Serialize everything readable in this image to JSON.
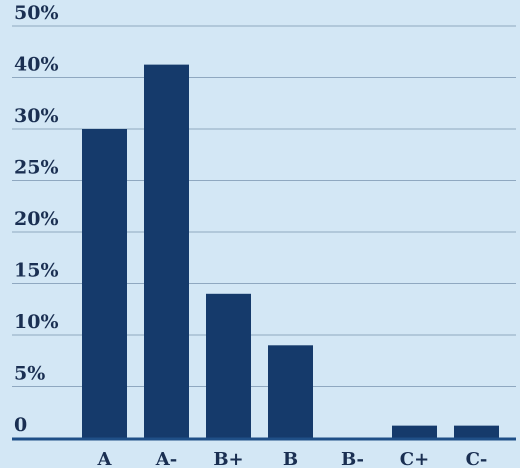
{
  "chart_data": {
    "type": "bar",
    "categories": [
      "A",
      "A-",
      "B+",
      "B",
      "B-",
      "C+",
      "C-"
    ],
    "values": [
      30,
      42.5,
      14,
      9,
      0,
      1.2,
      1.2
    ],
    "y_tick_labels": [
      "0",
      "5%",
      "10%",
      "15%",
      "20%",
      "25%",
      "30%",
      "40%",
      "50%"
    ],
    "xlabel": "",
    "ylabel": "",
    "ylim": [
      0,
      50
    ],
    "grid": true,
    "legend": "none",
    "colors": {
      "background": "#d3e7f5",
      "bar": "#153a6b",
      "grid": "#8fa8c0",
      "axis": "#1f4f87",
      "text": "#1a2f52"
    }
  }
}
